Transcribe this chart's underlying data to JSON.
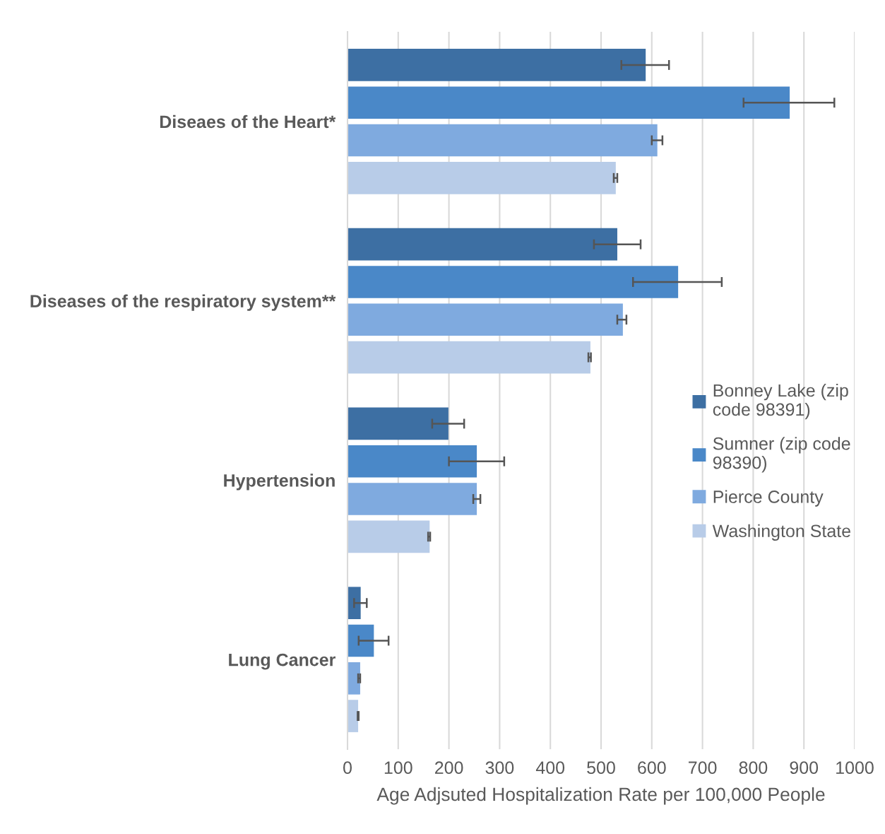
{
  "chart_data": {
    "type": "bar",
    "orientation": "horizontal",
    "xlabel": "Age Adjsuted Hospitalization Rate per 100,000 People",
    "categories": [
      "Diseaes of the Heart*",
      "Diseases of the respiratory system**",
      "Hypertension",
      "Lung Cancer"
    ],
    "series": [
      {
        "name": "Bonney Lake (zip code 98391)",
        "color": "#3d6fa3",
        "values": [
          588,
          532,
          199,
          26
        ],
        "errors": [
          [
            540,
            634
          ],
          [
            486,
            578
          ],
          [
            167,
            230
          ],
          [
            13,
            38
          ]
        ]
      },
      {
        "name": "Sumner (zip code 98390)",
        "color": "#4a88c8",
        "values": [
          872,
          652,
          255,
          52
        ],
        "errors": [
          [
            781,
            960
          ],
          [
            563,
            738
          ],
          [
            200,
            309
          ],
          [
            22,
            81
          ]
        ]
      },
      {
        "name": "Pierce County",
        "color": "#7faadf",
        "values": [
          611,
          543,
          255,
          25
        ],
        "errors": [
          [
            600,
            621
          ],
          [
            532,
            550
          ],
          [
            248,
            262
          ],
          [
            21,
            25
          ]
        ]
      },
      {
        "name": "Washington State",
        "color": "#b8cce8",
        "values": [
          529,
          479,
          162,
          21
        ],
        "errors": [
          [
            525,
            532
          ],
          [
            475,
            480
          ],
          [
            159,
            163
          ],
          [
            20,
            22
          ]
        ]
      }
    ],
    "xlim": [
      0,
      1000
    ],
    "xticks": [
      0,
      100,
      200,
      300,
      400,
      500,
      600,
      700,
      800,
      900,
      1000
    ],
    "grid": "x",
    "legend": "right"
  }
}
